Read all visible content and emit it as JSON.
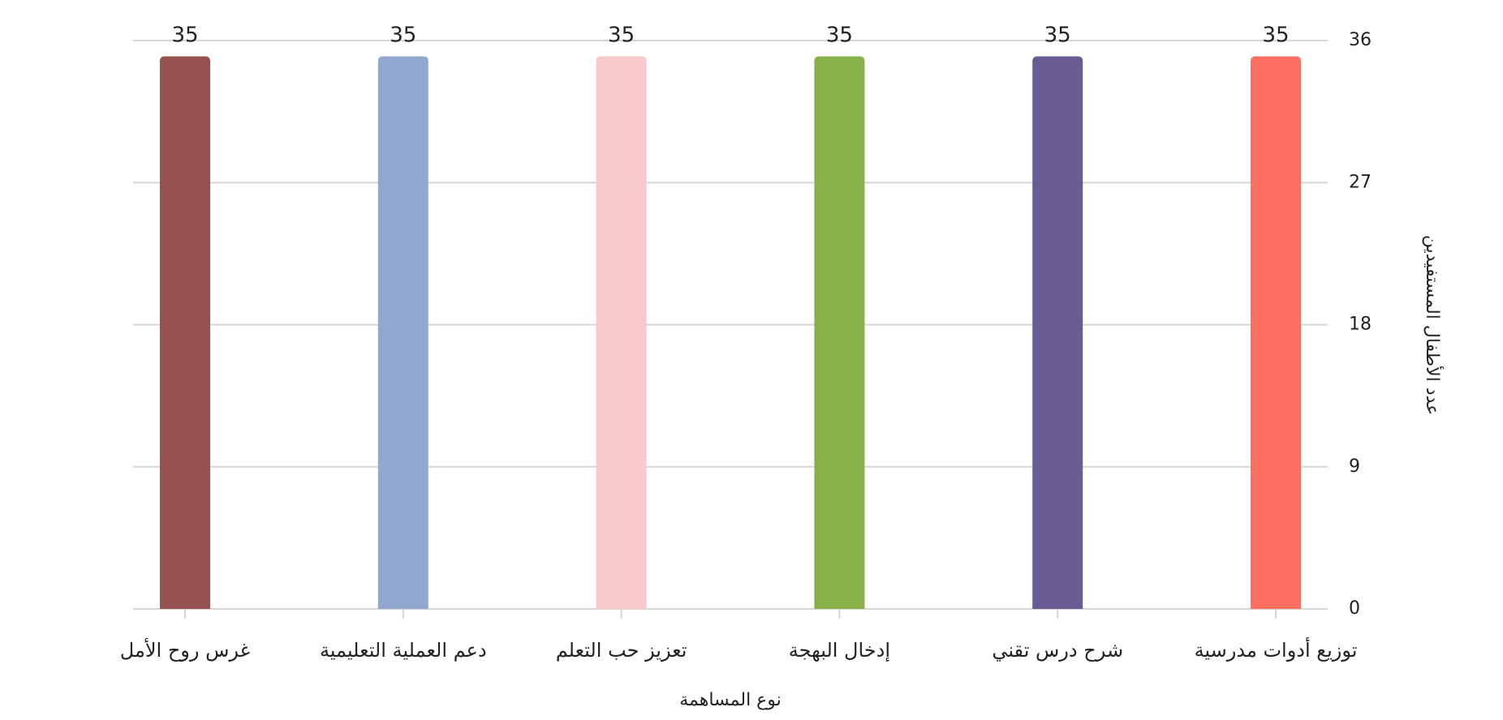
{
  "chart_data": {
    "type": "bar",
    "x_label": "نوع المساهمة",
    "y_label": "عدد الأطفال المستفيدين",
    "categories": [
      "توزيع أدوات مدرسية",
      "شرح درس تقني",
      "إدخال البهجة",
      "تعزيز حب التعلم",
      "دعم العملية التعليمية",
      "غرس روح الأمل"
    ],
    "values": [
      35,
      35,
      35,
      35,
      35,
      35
    ],
    "colors": [
      "#ff6f61",
      "#6b5b95",
      "#88b04b",
      "#f7cac9",
      "#92a8d1",
      "#955251"
    ],
    "ylim": [
      0,
      36
    ],
    "yticks": [
      0,
      9,
      18,
      27,
      36
    ],
    "grid": true,
    "y_axis_side": "right",
    "x_direction": "rtl"
  }
}
